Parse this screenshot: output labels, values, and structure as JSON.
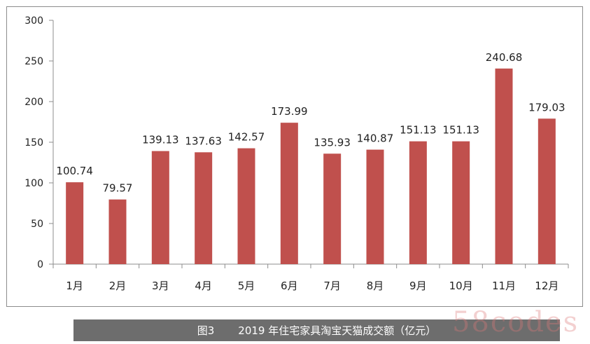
{
  "chart_data": {
    "type": "bar",
    "categories": [
      "1月",
      "2月",
      "3月",
      "4月",
      "5月",
      "6月",
      "7月",
      "8月",
      "9月",
      "10月",
      "11月",
      "12月"
    ],
    "values": [
      100.74,
      79.57,
      139.13,
      137.63,
      142.57,
      173.99,
      135.93,
      140.87,
      151.13,
      151.13,
      240.68,
      179.03
    ],
    "value_labels": [
      "100.74",
      "79.57",
      "139.13",
      "137.63",
      "142.57",
      "173.99",
      "135.93",
      "140.87",
      "151.13",
      "151.13",
      "240.68",
      "179.03"
    ],
    "y_ticks": [
      "0",
      "50",
      "100",
      "150",
      "200",
      "250",
      "300"
    ],
    "ylim": [
      0,
      300
    ],
    "grid": false,
    "legend": "none",
    "bar_color": "#c0504d"
  },
  "caption": {
    "figure_number": "图3",
    "text": "2019 年住宅家具淘宝天猫成交额（亿元）"
  },
  "watermark": "58codes"
}
